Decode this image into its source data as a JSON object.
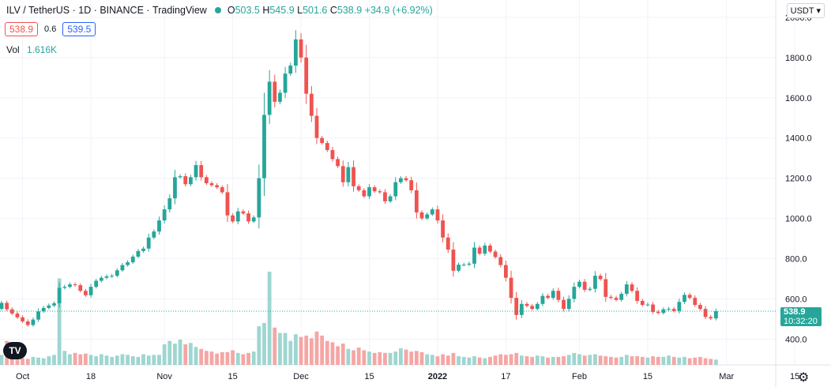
{
  "header": {
    "symbol": "ILV / TetherUS",
    "interval": "1D",
    "exchange": "BINANCE",
    "platform": "TradingView",
    "o_label": "O",
    "o_value": "503.5",
    "h_label": "H",
    "h_value": "545.9",
    "l_label": "L",
    "l_value": "501.6",
    "c_label": "C",
    "c_value": "538.9",
    "change": "+34.9 (+6.92%)"
  },
  "quote": {
    "bid": "538.9",
    "spread": "0.6",
    "ask": "539.5"
  },
  "volume": {
    "label": "Vol",
    "value": "1.616K"
  },
  "currency": "USDT",
  "price_label": {
    "price": "538.9",
    "countdown": "10:32:20"
  },
  "colors": {
    "up": "#26a69a",
    "down": "#ef5350",
    "up_vol": "#9ed6d0",
    "down_vol": "#f5a6a4"
  },
  "chart_data": {
    "type": "candlestick",
    "y_axis": {
      "ticks": [
        "400.0",
        "600.0",
        "800.0",
        "1000.0",
        "1200.0",
        "1400.0",
        "1600.0",
        "1800.0",
        "2000.0"
      ],
      "ylim": [
        260,
        2035
      ],
      "side": "right"
    },
    "x_axis": {
      "tick_labels": [
        "Oct",
        "18",
        "Nov",
        "15",
        "Dec",
        "15",
        "2022",
        "17",
        "Feb",
        "15",
        "Mar",
        "15"
      ],
      "tick_index": [
        4,
        17,
        31,
        44,
        57,
        70,
        83,
        96,
        110,
        123,
        138,
        151
      ]
    },
    "grid": true,
    "last_price_line": 538.9,
    "close": [
      580,
      548,
      527,
      508,
      488,
      470,
      497,
      538,
      555,
      567,
      578,
      655,
      660,
      672,
      668,
      640,
      618,
      660,
      690,
      705,
      712,
      715,
      742,
      768,
      782,
      810,
      838,
      850,
      905,
      935,
      990,
      1045,
      1100,
      1205,
      1210,
      1170,
      1205,
      1265,
      1205,
      1175,
      1165,
      1155,
      1130,
      1015,
      985,
      1035,
      1025,
      985,
      1005,
      1200,
      1515,
      1680,
      1580,
      1625,
      1720,
      1760,
      1890,
      1800,
      1620,
      1510,
      1400,
      1375,
      1340,
      1295,
      1260,
      1180,
      1255,
      1160,
      1140,
      1110,
      1155,
      1135,
      1130,
      1085,
      1110,
      1180,
      1200,
      1190,
      1140,
      1030,
      1000,
      1020,
      1045,
      990,
      905,
      845,
      740,
      770,
      770,
      775,
      855,
      825,
      865,
      835,
      808,
      768,
      705,
      605,
      520,
      575,
      565,
      550,
      575,
      615,
      605,
      640,
      595,
      550,
      600,
      660,
      685,
      645,
      650,
      715,
      698,
      610,
      605,
      595,
      625,
      672,
      640,
      590,
      570,
      572,
      535,
      530,
      548,
      550,
      540,
      585,
      620,
      605,
      570,
      550,
      510,
      503,
      539
    ],
    "ohlc_note": "daily candles, first visible day is partially cut at left edge",
    "volume_series": [
      1.5,
      3.6,
      2.4,
      0.8,
      1.0,
      0.9,
      1.2,
      1.1,
      1.0,
      1.3,
      1.5,
      13.0,
      2.1,
      1.6,
      1.8,
      1.6,
      1.7,
      1.5,
      1.3,
      1.6,
      1.4,
      1.2,
      1.4,
      1.6,
      1.5,
      1.3,
      1.2,
      1.6,
      1.4,
      1.5,
      1.5,
      3.1,
      3.6,
      3.2,
      3.8,
      3.1,
      3.3,
      2.7,
      2.4,
      2.1,
      2.0,
      1.7,
      1.9,
      1.9,
      2.2,
      1.8,
      1.6,
      1.8,
      2.0,
      5.8,
      6.3,
      14.0,
      5.6,
      4.8,
      4.8,
      3.6,
      4.6,
      4.2,
      4.4,
      4.0,
      5.0,
      4.4,
      3.6,
      3.4,
      2.8,
      3.2,
      2.4,
      2.2,
      2.6,
      2.2,
      2.0,
      1.8,
      1.9,
      1.8,
      1.8,
      2.0,
      2.5,
      2.3,
      2.0,
      2.1,
      1.9,
      1.6,
      1.5,
      1.3,
      1.6,
      1.4,
      1.8,
      1.3,
      1.2,
      1.1,
      1.3,
      1.1,
      1.0,
      1.2,
      1.4,
      1.6,
      1.5,
      1.6,
      1.8,
      1.4,
      1.3,
      1.2,
      1.4,
      1.3,
      1.1,
      1.2,
      1.2,
      1.3,
      1.5,
      1.8,
      1.6,
      1.4,
      1.5,
      1.6,
      1.4,
      1.3,
      1.2,
      1.1,
      1.2,
      1.5,
      1.3,
      1.3,
      1.2,
      1.1,
      1.3,
      1.2,
      1.2,
      1.4,
      1.2,
      1.1,
      1.2,
      1.0,
      1.1,
      1.2,
      1.0,
      0.9,
      0.8
    ]
  }
}
